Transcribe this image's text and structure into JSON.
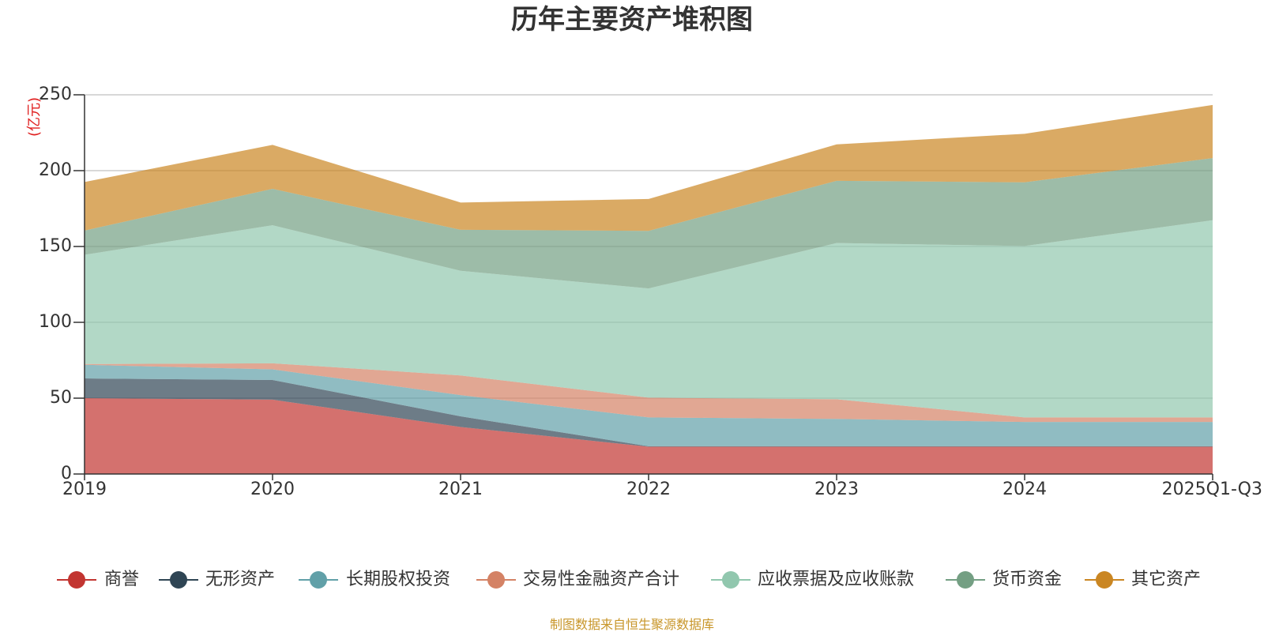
{
  "chart_data": {
    "type": "area",
    "stacked": true,
    "title": "历年主要资产堆积图",
    "ylabel": "(亿元)",
    "xlabel": "",
    "ylim": [
      0,
      250
    ],
    "yticks": [
      0,
      50,
      100,
      150,
      200,
      250
    ],
    "categories": [
      "2019",
      "2020",
      "2021",
      "2022",
      "2023",
      "2024",
      "2025Q1-Q3"
    ],
    "grid": true,
    "legend_position": "bottom",
    "series": [
      {
        "name": "商誉",
        "color": "#c23531",
        "values": [
          50,
          49,
          31,
          18,
          18,
          18,
          18
        ]
      },
      {
        "name": "无形资产",
        "color": "#2f4554",
        "values": [
          13,
          13,
          7,
          0.3,
          0.3,
          0.3,
          0.3
        ]
      },
      {
        "name": "长期股权投资",
        "color": "#61a0a8",
        "values": [
          9,
          7,
          14,
          19,
          18,
          16,
          16
        ]
      },
      {
        "name": "交易性金融资产合计",
        "color": "#d48265",
        "values": [
          0.5,
          4,
          13,
          13,
          13,
          3,
          3
        ]
      },
      {
        "name": "应收票据及应收账款",
        "color": "#91c7ae",
        "values": [
          72,
          91,
          69,
          72,
          103,
          113,
          130
        ]
      },
      {
        "name": "货币资金",
        "color": "#749f83",
        "values": [
          16,
          24,
          27,
          38,
          41,
          42,
          41
        ]
      },
      {
        "name": "其它资产",
        "color": "#ca8622",
        "values": [
          32,
          29,
          18,
          21,
          24,
          32,
          35
        ]
      }
    ],
    "source": "制图数据来自恒生聚源数据库"
  }
}
